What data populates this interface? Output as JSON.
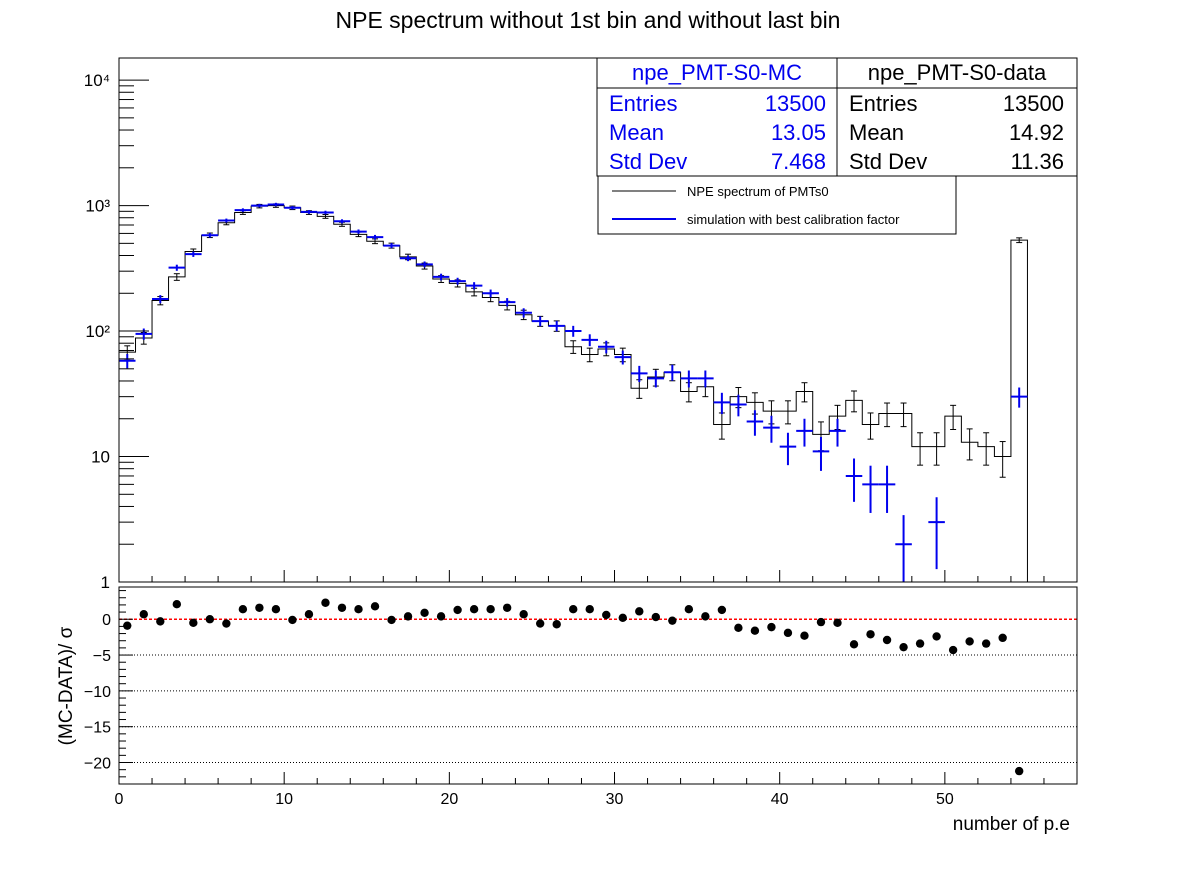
{
  "title": "NPE spectrum without 1st bin and without last bin",
  "colors": {
    "mc": "#0000ee",
    "data": "#000000",
    "zero_line": "#ff0000",
    "points": "#000000"
  },
  "stats": {
    "mc": {
      "name": "npe_PMT-S0-MC",
      "entries_label": "Entries",
      "entries": "13500",
      "mean_label": "Mean",
      "mean": "13.05",
      "std_label": "Std Dev",
      "std": "7.468"
    },
    "data": {
      "name": "npe_PMT-S0-data",
      "entries_label": "Entries",
      "entries": "13500",
      "mean_label": "Mean",
      "mean": "14.92",
      "std_label": "Std Dev",
      "std": "11.36"
    }
  },
  "legend": [
    {
      "label": "NPE spectrum of PMTs0",
      "color": "#000000"
    },
    {
      "label": "simulation with best calibration factor",
      "color": "#0000ee"
    }
  ],
  "chart_data": [
    {
      "type": "line",
      "subtype": "histogram",
      "scale": "log",
      "ylim": [
        1,
        15000
      ],
      "xlim": [
        0,
        58
      ],
      "y_tick_labels": [
        "1",
        "10",
        "10²",
        "10³",
        "10⁴"
      ],
      "x": [
        0.5,
        1.5,
        2.5,
        3.5,
        4.5,
        5.5,
        6.5,
        7.5,
        8.5,
        9.5,
        10.5,
        11.5,
        12.5,
        13.5,
        14.5,
        15.5,
        16.5,
        17.5,
        18.5,
        19.5,
        20.5,
        21.5,
        22.5,
        23.5,
        24.5,
        25.5,
        26.5,
        27.5,
        28.5,
        29.5,
        30.5,
        31.5,
        32.5,
        33.5,
        34.5,
        35.5,
        36.5,
        37.5,
        38.5,
        39.5,
        40.5,
        41.5,
        42.5,
        43.5,
        44.5,
        45.5,
        46.5,
        47.5,
        48.5,
        49.5,
        50.5,
        51.5,
        52.5,
        53.5,
        54.5
      ],
      "series": [
        {
          "name": "NPE spectrum of PMTs0",
          "values": [
            68,
            88,
            175,
            270,
            430,
            580,
            730,
            880,
            990,
            1000,
            960,
            880,
            820,
            710,
            590,
            520,
            480,
            390,
            330,
            260,
            240,
            205,
            185,
            160,
            135,
            120,
            110,
            75,
            65,
            72,
            65,
            35,
            43,
            47,
            33,
            36,
            18,
            30,
            27,
            23,
            23,
            33,
            15,
            21,
            28,
            18,
            22,
            22,
            12,
            12,
            21,
            13,
            12,
            10,
            530
          ]
        },
        {
          "name": "simulation with best calibration factor",
          "values": [
            58,
            95,
            180,
            320,
            410,
            580,
            760,
            920,
            1000,
            1020,
            960,
            890,
            880,
            750,
            620,
            560,
            480,
            380,
            340,
            270,
            250,
            230,
            200,
            170,
            140,
            120,
            110,
            100,
            85,
            75,
            62,
            46,
            42,
            47,
            42,
            42,
            27,
            26,
            19,
            17,
            12,
            16,
            11,
            16,
            7,
            6,
            6,
            2,
            0,
            3,
            0,
            0,
            0,
            0,
            30
          ]
        }
      ]
    },
    {
      "type": "scatter",
      "ylabel": "(MC-DATA)/ σ",
      "xlabel": "number of p.e",
      "ylim": [
        -23,
        4.5
      ],
      "yticks": [
        0,
        -5,
        -10,
        -15,
        -20
      ],
      "y_tick_labels": [
        "0",
        "−5",
        "−10",
        "−15",
        "−20"
      ],
      "xticks": [
        0,
        10,
        20,
        30,
        40,
        50
      ],
      "x_tick_labels": [
        "0",
        "10",
        "20",
        "30",
        "40",
        "50"
      ],
      "x": [
        0.5,
        1.5,
        2.5,
        3.5,
        4.5,
        5.5,
        6.5,
        7.5,
        8.5,
        9.5,
        10.5,
        11.5,
        12.5,
        13.5,
        14.5,
        15.5,
        16.5,
        17.5,
        18.5,
        19.5,
        20.5,
        21.5,
        22.5,
        23.5,
        24.5,
        25.5,
        26.5,
        27.5,
        28.5,
        29.5,
        30.5,
        31.5,
        32.5,
        33.5,
        34.5,
        35.5,
        36.5,
        37.5,
        38.5,
        39.5,
        40.5,
        41.5,
        42.5,
        43.5,
        44.5,
        45.5,
        46.5,
        47.5,
        48.5,
        49.5,
        50.5,
        51.5,
        52.5,
        53.5,
        54.5
      ],
      "y": [
        -0.9,
        0.7,
        -0.3,
        2.1,
        -0.5,
        0.0,
        -0.6,
        1.4,
        1.6,
        1.4,
        -0.1,
        0.7,
        2.3,
        1.6,
        1.4,
        1.8,
        -0.1,
        0.4,
        0.9,
        0.4,
        1.3,
        1.4,
        1.4,
        1.6,
        0.7,
        -0.6,
        -0.7,
        1.4,
        1.4,
        0.6,
        0.2,
        1.1,
        0.3,
        -0.2,
        1.4,
        0.4,
        1.3,
        -1.2,
        -1.6,
        -1.1,
        -1.9,
        -2.3,
        -0.4,
        -0.5,
        -3.5,
        -2.1,
        -2.9,
        -3.9,
        -3.4,
        -2.4,
        -4.3,
        -3.1,
        -3.4,
        -2.6,
        -21.2
      ]
    }
  ]
}
